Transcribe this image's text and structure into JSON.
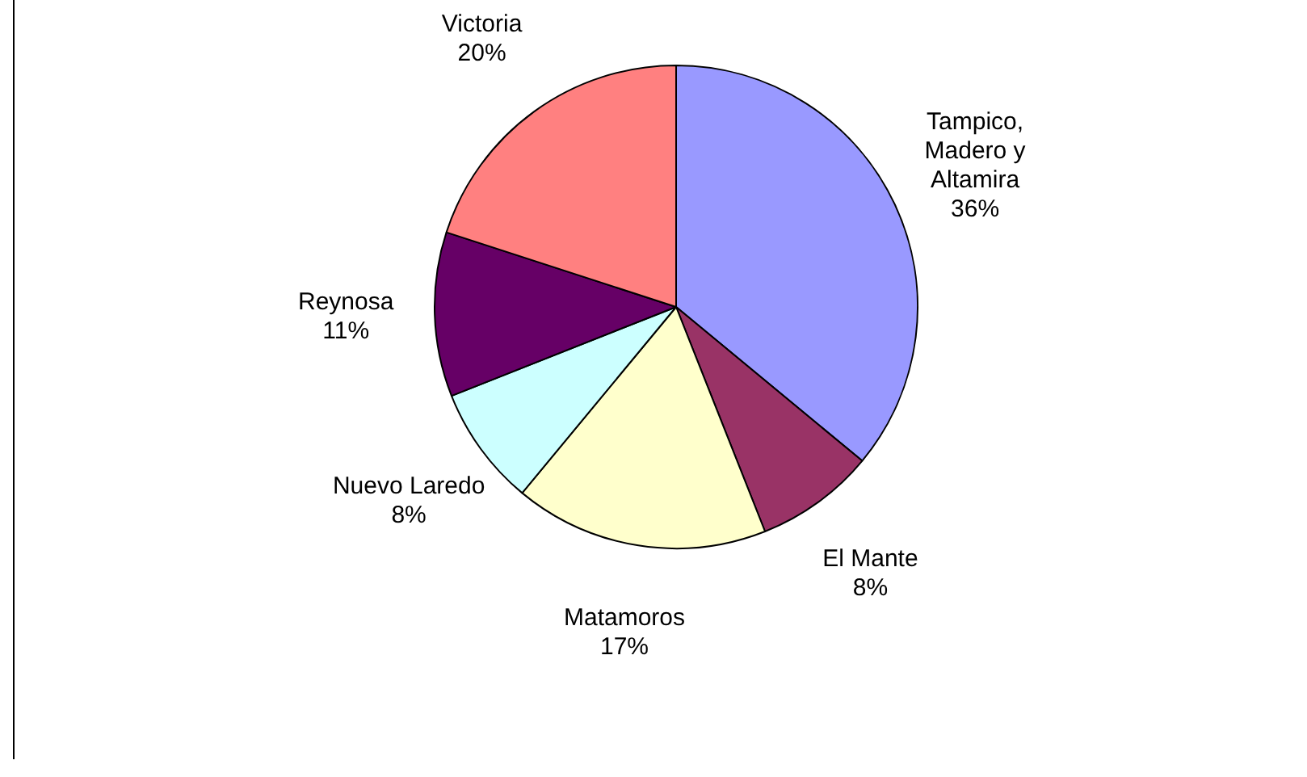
{
  "chart_data": {
    "type": "pie",
    "categories": [
      "Tampico, Madero y Altamira",
      "El Mante",
      "Matamoros",
      "Nuevo Laredo",
      "Reynosa",
      "Victoria"
    ],
    "values": [
      36,
      8,
      17,
      8,
      11,
      20
    ],
    "colors": [
      "#9999ff",
      "#993366",
      "#ffffcc",
      "#ccffff",
      "#660066",
      "#ff8080"
    ],
    "value_labels": [
      "36%",
      "8%",
      "17%",
      "8%",
      "11%",
      "20%"
    ],
    "legend": false
  }
}
